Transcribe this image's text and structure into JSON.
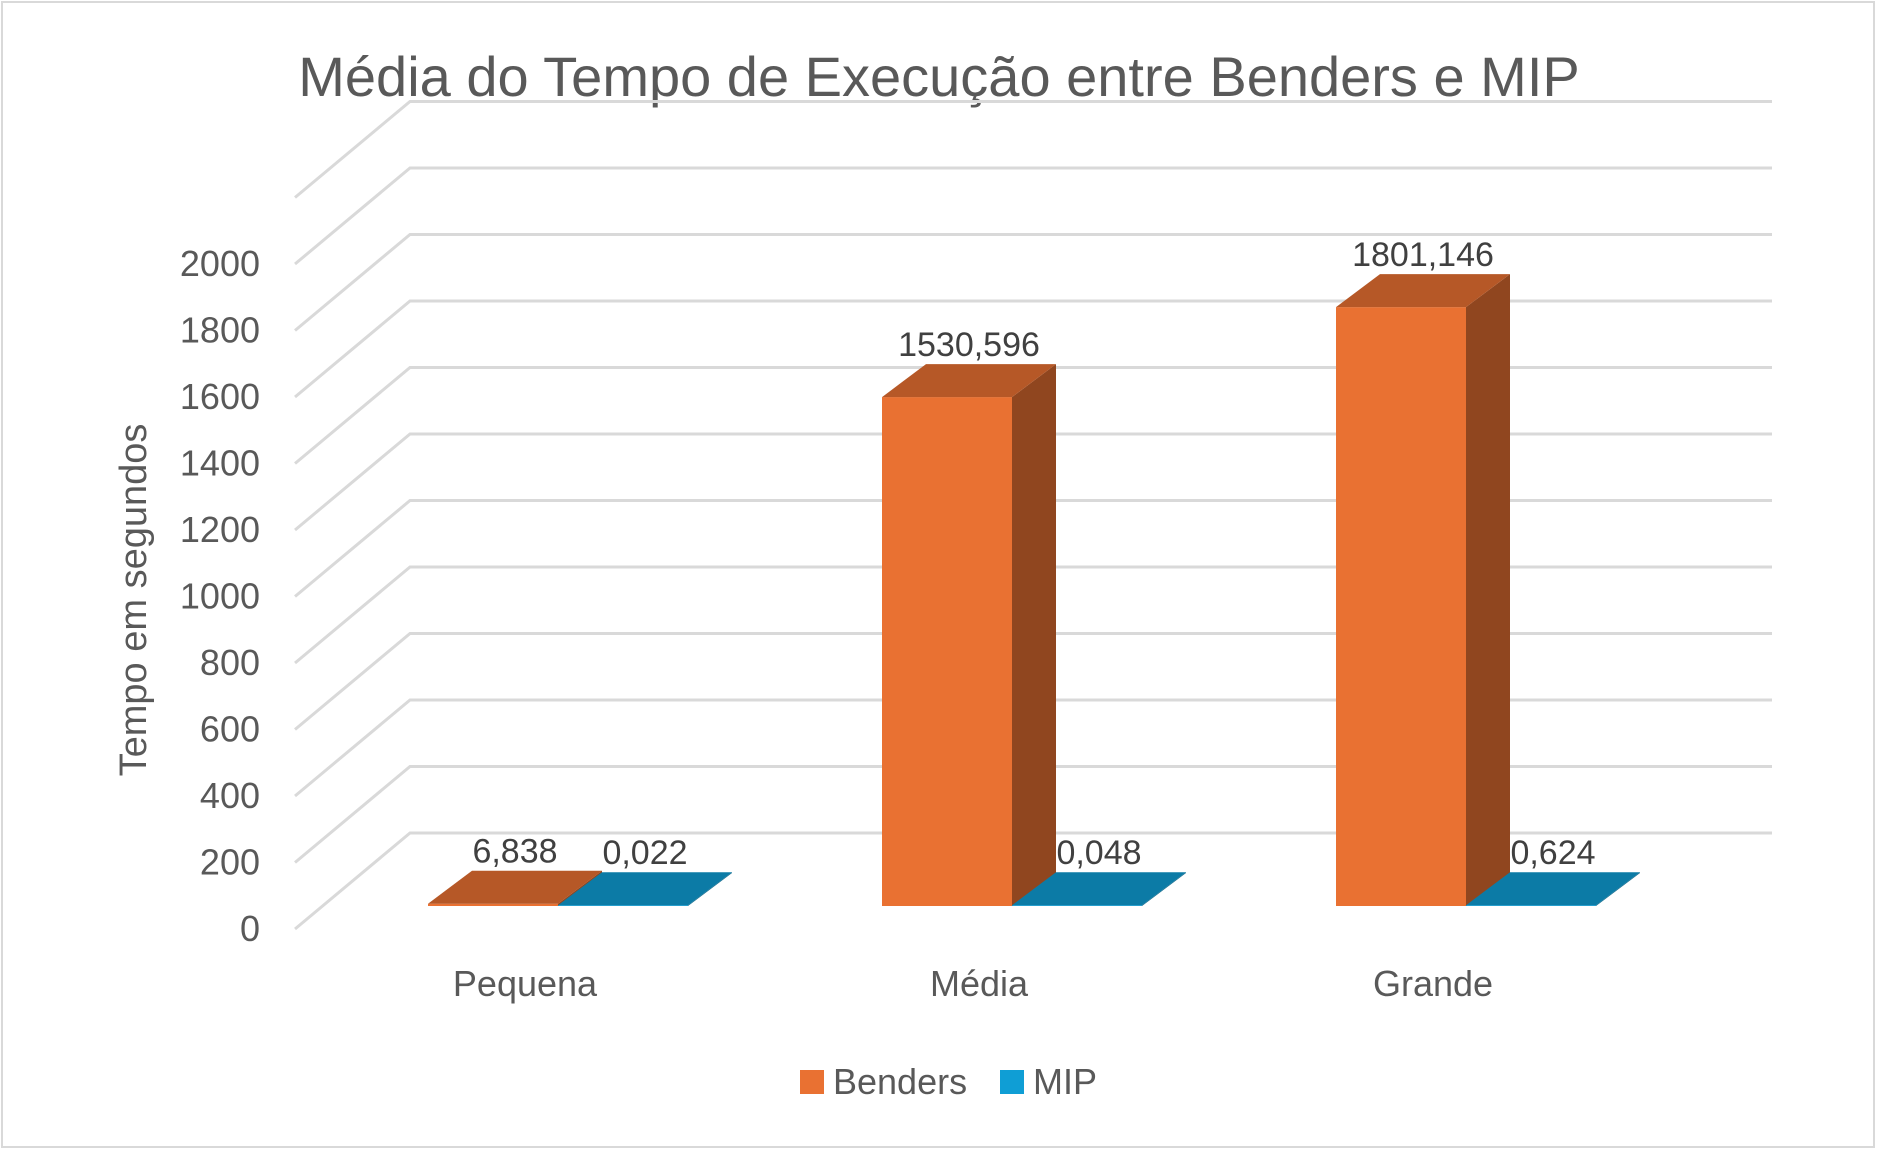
{
  "chart_data": {
    "type": "bar",
    "title": "Média do Tempo de Execução entre Benders e MIP",
    "ylabel": "Tempo em segundos",
    "xlabel": "",
    "categories": [
      "Pequena",
      "Média",
      "Grande"
    ],
    "series": [
      {
        "name": "Benders",
        "values": [
          6.838,
          1530.596,
          1801.146
        ],
        "labels": [
          "6,838",
          "1530,596",
          "1801,146"
        ],
        "color": "#E97132"
      },
      {
        "name": "MIP",
        "values": [
          0.022,
          0.048,
          0.624
        ],
        "labels": [
          "0,022",
          "0,048",
          "0,624"
        ],
        "color": "#0F9ED5"
      }
    ],
    "yticks": [
      "0",
      "200",
      "400",
      "600",
      "800",
      "1000",
      "1200",
      "1400",
      "1600",
      "1800",
      "2000"
    ],
    "ylim": [
      0,
      2000
    ],
    "grid": true,
    "legend": "bottom",
    "style": "3d-column"
  }
}
